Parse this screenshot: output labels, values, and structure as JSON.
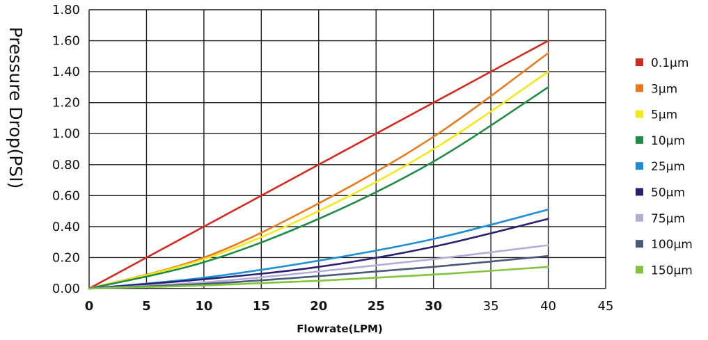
{
  "chart_data": {
    "type": "line",
    "xlabel": "Flowrate(LPM)",
    "ylabel": "Pressure Drop(PSI)",
    "xlim": [
      0,
      45
    ],
    "ylim": [
      0,
      1.8
    ],
    "x_ticks": [
      "0",
      "5",
      "10",
      "15",
      "20",
      "25",
      "30",
      "35",
      "40",
      "45"
    ],
    "y_ticks": [
      "0.00",
      "0.20",
      "0.40",
      "0.60",
      "0.80",
      "1.00",
      "1.20",
      "1.40",
      "1.60",
      "1.80"
    ],
    "grid": true,
    "legend_position": "right",
    "series": [
      {
        "name": "0.1μm",
        "color": "#d42a1e",
        "x": [
          0,
          10,
          20,
          30,
          40
        ],
        "y": [
          0,
          0.4,
          0.8,
          1.2,
          1.6
        ]
      },
      {
        "name": "3μm",
        "color": "#e8791e",
        "x": [
          0,
          10,
          20,
          30,
          40
        ],
        "y": [
          0,
          0.2,
          0.55,
          0.98,
          1.52
        ]
      },
      {
        "name": "5μm",
        "color": "#f5e81a",
        "x": [
          0,
          10,
          20,
          30,
          40
        ],
        "y": [
          0,
          0.19,
          0.5,
          0.9,
          1.4
        ]
      },
      {
        "name": "10μm",
        "color": "#1e8c45",
        "x": [
          0,
          10,
          20,
          30,
          40
        ],
        "y": [
          0,
          0.17,
          0.45,
          0.82,
          1.3
        ]
      },
      {
        "name": "25μm",
        "color": "#1e8fd6",
        "x": [
          0,
          10,
          20,
          30,
          40
        ],
        "y": [
          0,
          0.07,
          0.18,
          0.32,
          0.51
        ]
      },
      {
        "name": "50μm",
        "color": "#2a2070",
        "x": [
          0,
          10,
          20,
          30,
          40
        ],
        "y": [
          0,
          0.06,
          0.14,
          0.27,
          0.45
        ]
      },
      {
        "name": "75μm",
        "color": "#b3aed6",
        "x": [
          0,
          10,
          20,
          30,
          40
        ],
        "y": [
          0,
          0.04,
          0.11,
          0.19,
          0.28
        ]
      },
      {
        "name": "100μm",
        "color": "#4a5a78",
        "x": [
          0,
          10,
          20,
          30,
          40
        ],
        "y": [
          0,
          0.03,
          0.08,
          0.14,
          0.21
        ]
      },
      {
        "name": "150μm",
        "color": "#7fc43a",
        "x": [
          0,
          10,
          20,
          30,
          40
        ],
        "y": [
          0,
          0.02,
          0.05,
          0.09,
          0.14
        ]
      }
    ]
  }
}
